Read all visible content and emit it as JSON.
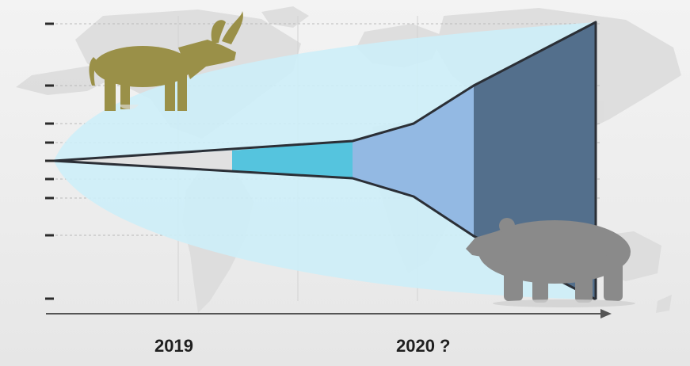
{
  "timeline": {
    "labels": [
      "2019",
      "2020 ?"
    ]
  },
  "colors": {
    "cone_outer": "#cdeef8",
    "segment_gray": "#dcdcdc",
    "segment_cyan": "#55c4de",
    "segment_light_blue": "#93b9e3",
    "segment_dark_blue": "#536f8c",
    "bull": "#9a9048",
    "bear": "#8a8a8a",
    "map": "#d9d9d9",
    "outline": "#2b2f36"
  },
  "icons": {
    "bull": "bull-icon",
    "bear": "bear-icon"
  }
}
